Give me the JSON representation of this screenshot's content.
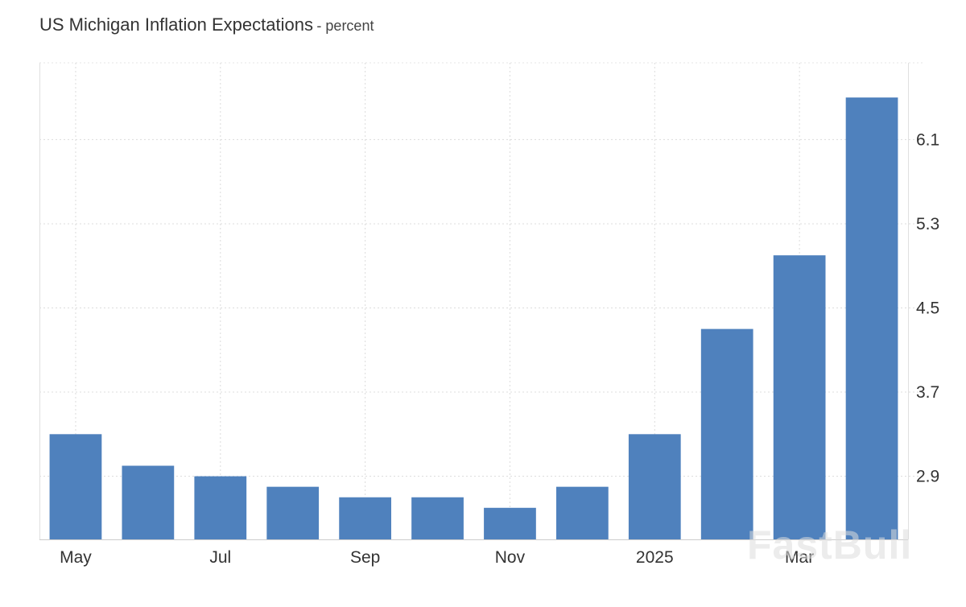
{
  "chart_data": {
    "type": "bar",
    "title": "US Michigan Inflation Expectations",
    "unit": "- percent",
    "categories": [
      "2024-05",
      "2024-06",
      "2024-07",
      "2024-08",
      "2024-09",
      "2024-10",
      "2024-11",
      "2024-12",
      "2025-01",
      "2025-02",
      "2025-03",
      "2025-04"
    ],
    "values": [
      3.3,
      3.0,
      2.9,
      2.8,
      2.7,
      2.7,
      2.6,
      2.8,
      3.3,
      4.3,
      5.0,
      6.5
    ],
    "x_tick_labels": [
      {
        "category": "2024-05",
        "label": "May"
      },
      {
        "category": "2024-07",
        "label": "Jul"
      },
      {
        "category": "2024-09",
        "label": "Sep"
      },
      {
        "category": "2024-11",
        "label": "Nov"
      },
      {
        "category": "2025-01",
        "label": "2025"
      },
      {
        "category": "2025-03",
        "label": "Mar"
      }
    ],
    "y_ticks": [
      2.9,
      3.7,
      4.5,
      5.3,
      6.1
    ],
    "ylim": [
      2.3,
      6.83
    ],
    "y_axis_position": "right",
    "grid": true,
    "bar_color": "#4f81bd"
  },
  "watermark": "FastBull"
}
